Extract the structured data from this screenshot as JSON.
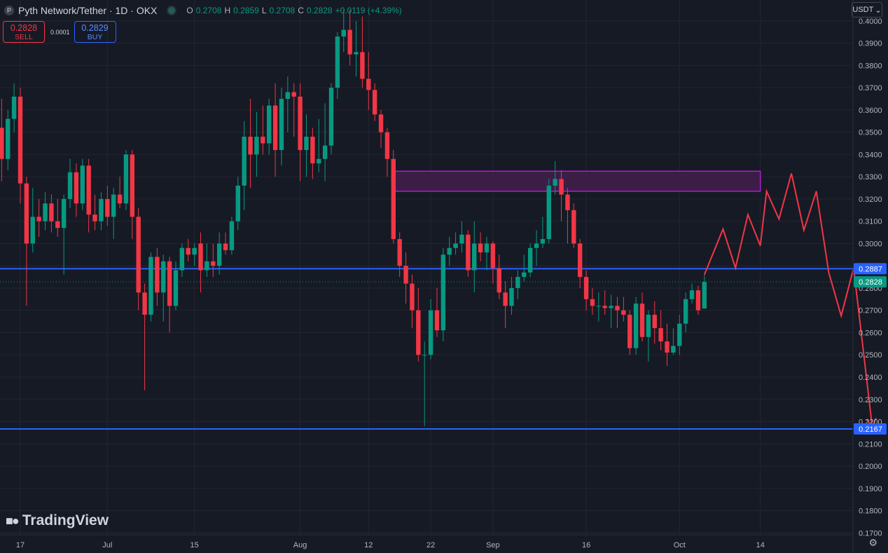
{
  "header": {
    "logo_icon": "pyth-logo-icon",
    "title": "Pyth Network/Tether · 1D · OKX",
    "ohlc": {
      "o_label": "O",
      "o": "0.2708",
      "h_label": "H",
      "h": "0.2859",
      "l_label": "L",
      "l": "0.2708",
      "c_label": "C",
      "c": "0.2828",
      "change": "+0.0119 (+4.39%)"
    }
  },
  "trade": {
    "sell_price": "0.2828",
    "sell_label": "SELL",
    "spread": "0.0001",
    "buy_price": "0.2829",
    "buy_label": "BUY"
  },
  "currency": {
    "label": "USDT",
    "icon": "chevron-down-icon"
  },
  "branding": {
    "name": "TradingView",
    "icon": "tradingview-logo-icon"
  },
  "settings_icon": "gear-icon",
  "colors": {
    "bg": "#161a25",
    "grid": "#232632",
    "up": "#089981",
    "down": "#f23645",
    "hline": "#2962ff",
    "zone_fill": "#4a1f52",
    "zone_stroke": "#b41ad0",
    "projection": "#f23645",
    "text": "#b2b5be"
  },
  "chart_data": {
    "type": "candlestick",
    "symbol": "Pyth Network/Tether",
    "interval": "1D",
    "exchange": "OKX",
    "ylim": [
      0.166,
      0.405
    ],
    "y_ticks": [
      "0.4000",
      "0.3900",
      "0.3800",
      "0.3700",
      "0.3600",
      "0.3500",
      "0.3400",
      "0.3300",
      "0.3200",
      "0.3100",
      "0.3000",
      "0.2900",
      "0.2800",
      "0.2700",
      "0.2600",
      "0.2500",
      "0.2400",
      "0.2300",
      "0.2200",
      "0.2100",
      "0.2000",
      "0.1900",
      "0.1800",
      "0.1700"
    ],
    "x_ticks": [
      {
        "label": "17",
        "date": "2024-06-17"
      },
      {
        "label": "Jul",
        "date": "2024-07-01"
      },
      {
        "label": "15",
        "date": "2024-07-15"
      },
      {
        "label": "Aug",
        "date": "2024-08-01"
      },
      {
        "label": "12",
        "date": "2024-08-12"
      },
      {
        "label": "22",
        "date": "2024-08-22"
      },
      {
        "label": "Sep",
        "date": "2024-09-01"
      },
      {
        "label": "16",
        "date": "2024-09-16"
      },
      {
        "label": "Oct",
        "date": "2024-10-01"
      },
      {
        "label": "14",
        "date": "2024-10-14"
      }
    ],
    "candles": [
      {
        "date": "2024-06-14",
        "o": 0.352,
        "h": 0.365,
        "l": 0.328,
        "c": 0.338
      },
      {
        "date": "2024-06-15",
        "o": 0.338,
        "h": 0.36,
        "l": 0.333,
        "c": 0.356
      },
      {
        "date": "2024-06-16",
        "o": 0.356,
        "h": 0.372,
        "l": 0.35,
        "c": 0.366
      },
      {
        "date": "2024-06-17",
        "o": 0.366,
        "h": 0.37,
        "l": 0.318,
        "c": 0.327
      },
      {
        "date": "2024-06-18",
        "o": 0.327,
        "h": 0.33,
        "l": 0.272,
        "c": 0.3
      },
      {
        "date": "2024-06-19",
        "o": 0.3,
        "h": 0.325,
        "l": 0.296,
        "c": 0.312
      },
      {
        "date": "2024-06-20",
        "o": 0.312,
        "h": 0.32,
        "l": 0.303,
        "c": 0.31
      },
      {
        "date": "2024-06-21",
        "o": 0.31,
        "h": 0.323,
        "l": 0.306,
        "c": 0.318
      },
      {
        "date": "2024-06-22",
        "o": 0.318,
        "h": 0.322,
        "l": 0.305,
        "c": 0.31
      },
      {
        "date": "2024-06-23",
        "o": 0.31,
        "h": 0.32,
        "l": 0.303,
        "c": 0.307
      },
      {
        "date": "2024-06-24",
        "o": 0.307,
        "h": 0.322,
        "l": 0.286,
        "c": 0.32
      },
      {
        "date": "2024-06-25",
        "o": 0.32,
        "h": 0.338,
        "l": 0.316,
        "c": 0.332
      },
      {
        "date": "2024-06-26",
        "o": 0.332,
        "h": 0.336,
        "l": 0.312,
        "c": 0.318
      },
      {
        "date": "2024-06-27",
        "o": 0.318,
        "h": 0.338,
        "l": 0.315,
        "c": 0.335
      },
      {
        "date": "2024-06-28",
        "o": 0.335,
        "h": 0.338,
        "l": 0.305,
        "c": 0.313
      },
      {
        "date": "2024-06-29",
        "o": 0.313,
        "h": 0.322,
        "l": 0.306,
        "c": 0.31
      },
      {
        "date": "2024-06-30",
        "o": 0.31,
        "h": 0.323,
        "l": 0.306,
        "c": 0.32
      },
      {
        "date": "2024-07-01",
        "o": 0.32,
        "h": 0.326,
        "l": 0.308,
        "c": 0.312
      },
      {
        "date": "2024-07-02",
        "o": 0.312,
        "h": 0.325,
        "l": 0.302,
        "c": 0.322
      },
      {
        "date": "2024-07-03",
        "o": 0.322,
        "h": 0.33,
        "l": 0.316,
        "c": 0.318
      },
      {
        "date": "2024-07-04",
        "o": 0.318,
        "h": 0.342,
        "l": 0.315,
        "c": 0.34
      },
      {
        "date": "2024-07-05",
        "o": 0.34,
        "h": 0.342,
        "l": 0.302,
        "c": 0.312
      },
      {
        "date": "2024-07-06",
        "o": 0.312,
        "h": 0.316,
        "l": 0.27,
        "c": 0.278
      },
      {
        "date": "2024-07-07",
        "o": 0.278,
        "h": 0.282,
        "l": 0.234,
        "c": 0.268
      },
      {
        "date": "2024-07-08",
        "o": 0.268,
        "h": 0.296,
        "l": 0.265,
        "c": 0.294
      },
      {
        "date": "2024-07-09",
        "o": 0.294,
        "h": 0.298,
        "l": 0.272,
        "c": 0.278
      },
      {
        "date": "2024-07-10",
        "o": 0.278,
        "h": 0.295,
        "l": 0.265,
        "c": 0.292
      },
      {
        "date": "2024-07-11",
        "o": 0.292,
        "h": 0.294,
        "l": 0.26,
        "c": 0.272
      },
      {
        "date": "2024-07-12",
        "o": 0.272,
        "h": 0.292,
        "l": 0.27,
        "c": 0.288
      },
      {
        "date": "2024-07-13",
        "o": 0.288,
        "h": 0.3,
        "l": 0.285,
        "c": 0.298
      },
      {
        "date": "2024-07-14",
        "o": 0.298,
        "h": 0.302,
        "l": 0.292,
        "c": 0.295
      },
      {
        "date": "2024-07-15",
        "o": 0.295,
        "h": 0.3,
        "l": 0.29,
        "c": 0.298
      },
      {
        "date": "2024-07-16",
        "o": 0.3,
        "h": 0.305,
        "l": 0.278,
        "c": 0.288
      },
      {
        "date": "2024-07-17",
        "o": 0.288,
        "h": 0.3,
        "l": 0.285,
        "c": 0.292
      },
      {
        "date": "2024-07-18",
        "o": 0.292,
        "h": 0.3,
        "l": 0.285,
        "c": 0.29
      },
      {
        "date": "2024-07-19",
        "o": 0.29,
        "h": 0.305,
        "l": 0.286,
        "c": 0.3
      },
      {
        "date": "2024-07-20",
        "o": 0.3,
        "h": 0.305,
        "l": 0.295,
        "c": 0.297
      },
      {
        "date": "2024-07-21",
        "o": 0.297,
        "h": 0.312,
        "l": 0.295,
        "c": 0.31
      },
      {
        "date": "2024-07-22",
        "o": 0.31,
        "h": 0.33,
        "l": 0.306,
        "c": 0.326
      },
      {
        "date": "2024-07-23",
        "o": 0.326,
        "h": 0.355,
        "l": 0.315,
        "c": 0.348
      },
      {
        "date": "2024-07-24",
        "o": 0.348,
        "h": 0.365,
        "l": 0.325,
        "c": 0.34
      },
      {
        "date": "2024-07-25",
        "o": 0.34,
        "h": 0.359,
        "l": 0.33,
        "c": 0.348
      },
      {
        "date": "2024-07-26",
        "o": 0.348,
        "h": 0.362,
        "l": 0.34,
        "c": 0.345
      },
      {
        "date": "2024-07-27",
        "o": 0.345,
        "h": 0.365,
        "l": 0.34,
        "c": 0.362
      },
      {
        "date": "2024-07-28",
        "o": 0.362,
        "h": 0.372,
        "l": 0.33,
        "c": 0.342
      },
      {
        "date": "2024-07-29",
        "o": 0.342,
        "h": 0.37,
        "l": 0.335,
        "c": 0.365
      },
      {
        "date": "2024-07-30",
        "o": 0.365,
        "h": 0.375,
        "l": 0.35,
        "c": 0.368
      },
      {
        "date": "2024-07-31",
        "o": 0.368,
        "h": 0.372,
        "l": 0.348,
        "c": 0.366
      },
      {
        "date": "2024-08-01",
        "o": 0.366,
        "h": 0.372,
        "l": 0.328,
        "c": 0.342
      },
      {
        "date": "2024-08-02",
        "o": 0.342,
        "h": 0.358,
        "l": 0.33,
        "c": 0.348
      },
      {
        "date": "2024-08-03",
        "o": 0.348,
        "h": 0.352,
        "l": 0.329,
        "c": 0.336
      },
      {
        "date": "2024-08-04",
        "o": 0.336,
        "h": 0.356,
        "l": 0.332,
        "c": 0.338
      },
      {
        "date": "2024-08-05",
        "o": 0.338,
        "h": 0.363,
        "l": 0.328,
        "c": 0.344
      },
      {
        "date": "2024-08-06",
        "o": 0.344,
        "h": 0.372,
        "l": 0.34,
        "c": 0.37
      },
      {
        "date": "2024-08-07",
        "o": 0.37,
        "h": 0.395,
        "l": 0.365,
        "c": 0.393
      },
      {
        "date": "2024-08-08",
        "o": 0.393,
        "h": 0.405,
        "l": 0.386,
        "c": 0.396
      },
      {
        "date": "2024-08-09",
        "o": 0.396,
        "h": 0.405,
        "l": 0.38,
        "c": 0.385
      },
      {
        "date": "2024-08-10",
        "o": 0.385,
        "h": 0.4,
        "l": 0.375,
        "c": 0.386
      },
      {
        "date": "2024-08-11",
        "o": 0.386,
        "h": 0.402,
        "l": 0.37,
        "c": 0.374
      },
      {
        "date": "2024-08-12",
        "o": 0.374,
        "h": 0.386,
        "l": 0.36,
        "c": 0.369
      },
      {
        "date": "2024-08-13",
        "o": 0.369,
        "h": 0.372,
        "l": 0.355,
        "c": 0.358
      },
      {
        "date": "2024-08-14",
        "o": 0.358,
        "h": 0.36,
        "l": 0.343,
        "c": 0.35
      },
      {
        "date": "2024-08-15",
        "o": 0.35,
        "h": 0.352,
        "l": 0.33,
        "c": 0.338
      },
      {
        "date": "2024-08-16",
        "o": 0.338,
        "h": 0.342,
        "l": 0.3,
        "c": 0.302
      },
      {
        "date": "2024-08-17",
        "o": 0.302,
        "h": 0.305,
        "l": 0.285,
        "c": 0.29
      },
      {
        "date": "2024-08-18",
        "o": 0.29,
        "h": 0.296,
        "l": 0.273,
        "c": 0.282
      },
      {
        "date": "2024-08-19",
        "o": 0.282,
        "h": 0.286,
        "l": 0.262,
        "c": 0.27
      },
      {
        "date": "2024-08-20",
        "o": 0.27,
        "h": 0.28,
        "l": 0.247,
        "c": 0.25
      },
      {
        "date": "2024-08-21",
        "o": 0.25,
        "h": 0.256,
        "l": 0.218,
        "c": 0.25
      },
      {
        "date": "2024-08-22",
        "o": 0.25,
        "h": 0.275,
        "l": 0.248,
        "c": 0.27
      },
      {
        "date": "2024-08-23",
        "o": 0.27,
        "h": 0.28,
        "l": 0.258,
        "c": 0.261
      },
      {
        "date": "2024-08-24",
        "o": 0.261,
        "h": 0.298,
        "l": 0.256,
        "c": 0.295
      },
      {
        "date": "2024-08-25",
        "o": 0.295,
        "h": 0.303,
        "l": 0.29,
        "c": 0.298
      },
      {
        "date": "2024-08-26",
        "o": 0.298,
        "h": 0.305,
        "l": 0.295,
        "c": 0.3
      },
      {
        "date": "2024-08-27",
        "o": 0.3,
        "h": 0.31,
        "l": 0.296,
        "c": 0.304
      },
      {
        "date": "2024-08-28",
        "o": 0.304,
        "h": 0.306,
        "l": 0.285,
        "c": 0.288
      },
      {
        "date": "2024-08-29",
        "o": 0.288,
        "h": 0.31,
        "l": 0.278,
        "c": 0.3
      },
      {
        "date": "2024-08-30",
        "o": 0.3,
        "h": 0.305,
        "l": 0.292,
        "c": 0.296
      },
      {
        "date": "2024-08-31",
        "o": 0.296,
        "h": 0.303,
        "l": 0.288,
        "c": 0.3
      },
      {
        "date": "2024-09-01",
        "o": 0.3,
        "h": 0.301,
        "l": 0.282,
        "c": 0.289
      },
      {
        "date": "2024-09-02",
        "o": 0.289,
        "h": 0.295,
        "l": 0.275,
        "c": 0.278
      },
      {
        "date": "2024-09-03",
        "o": 0.278,
        "h": 0.283,
        "l": 0.262,
        "c": 0.272
      },
      {
        "date": "2024-09-04",
        "o": 0.272,
        "h": 0.285,
        "l": 0.268,
        "c": 0.28
      },
      {
        "date": "2024-09-05",
        "o": 0.28,
        "h": 0.288,
        "l": 0.275,
        "c": 0.285
      },
      {
        "date": "2024-09-06",
        "o": 0.285,
        "h": 0.295,
        "l": 0.283,
        "c": 0.287
      },
      {
        "date": "2024-09-07",
        "o": 0.287,
        "h": 0.3,
        "l": 0.285,
        "c": 0.298
      },
      {
        "date": "2024-09-08",
        "o": 0.298,
        "h": 0.306,
        "l": 0.29,
        "c": 0.3
      },
      {
        "date": "2024-09-09",
        "o": 0.3,
        "h": 0.312,
        "l": 0.298,
        "c": 0.302
      },
      {
        "date": "2024-09-10",
        "o": 0.302,
        "h": 0.329,
        "l": 0.3,
        "c": 0.326
      },
      {
        "date": "2024-09-11",
        "o": 0.326,
        "h": 0.337,
        "l": 0.322,
        "c": 0.329
      },
      {
        "date": "2024-09-12",
        "o": 0.329,
        "h": 0.333,
        "l": 0.31,
        "c": 0.322
      },
      {
        "date": "2024-09-13",
        "o": 0.322,
        "h": 0.325,
        "l": 0.3,
        "c": 0.315
      },
      {
        "date": "2024-09-14",
        "o": 0.315,
        "h": 0.318,
        "l": 0.298,
        "c": 0.3
      },
      {
        "date": "2024-09-15",
        "o": 0.3,
        "h": 0.302,
        "l": 0.28,
        "c": 0.285
      },
      {
        "date": "2024-09-16",
        "o": 0.285,
        "h": 0.288,
        "l": 0.27,
        "c": 0.275
      },
      {
        "date": "2024-09-17",
        "o": 0.275,
        "h": 0.28,
        "l": 0.268,
        "c": 0.272
      },
      {
        "date": "2024-09-18",
        "o": 0.272,
        "h": 0.278,
        "l": 0.265,
        "c": 0.272
      },
      {
        "date": "2024-09-19",
        "o": 0.272,
        "h": 0.279,
        "l": 0.268,
        "c": 0.271
      },
      {
        "date": "2024-09-20",
        "o": 0.271,
        "h": 0.277,
        "l": 0.262,
        "c": 0.272
      },
      {
        "date": "2024-09-21",
        "o": 0.272,
        "h": 0.276,
        "l": 0.262,
        "c": 0.27
      },
      {
        "date": "2024-09-22",
        "o": 0.27,
        "h": 0.276,
        "l": 0.265,
        "c": 0.268
      },
      {
        "date": "2024-09-23",
        "o": 0.268,
        "h": 0.27,
        "l": 0.25,
        "c": 0.253
      },
      {
        "date": "2024-09-24",
        "o": 0.253,
        "h": 0.276,
        "l": 0.25,
        "c": 0.273
      },
      {
        "date": "2024-09-25",
        "o": 0.273,
        "h": 0.278,
        "l": 0.256,
        "c": 0.258
      },
      {
        "date": "2024-09-26",
        "o": 0.258,
        "h": 0.27,
        "l": 0.247,
        "c": 0.268
      },
      {
        "date": "2024-09-27",
        "o": 0.268,
        "h": 0.274,
        "l": 0.255,
        "c": 0.262
      },
      {
        "date": "2024-09-28",
        "o": 0.262,
        "h": 0.27,
        "l": 0.252,
        "c": 0.256
      },
      {
        "date": "2024-09-29",
        "o": 0.256,
        "h": 0.264,
        "l": 0.245,
        "c": 0.251
      },
      {
        "date": "2024-09-30",
        "o": 0.251,
        "h": 0.262,
        "l": 0.25,
        "c": 0.254
      },
      {
        "date": "2024-10-01",
        "o": 0.254,
        "h": 0.268,
        "l": 0.25,
        "c": 0.264
      },
      {
        "date": "2024-10-02",
        "o": 0.264,
        "h": 0.278,
        "l": 0.26,
        "c": 0.275
      },
      {
        "date": "2024-10-03",
        "o": 0.275,
        "h": 0.282,
        "l": 0.273,
        "c": 0.279
      },
      {
        "date": "2024-10-04",
        "o": 0.279,
        "h": 0.281,
        "l": 0.268,
        "c": 0.27
      },
      {
        "date": "2024-10-05",
        "o": 0.2708,
        "h": 0.2859,
        "l": 0.2708,
        "c": 0.2828
      }
    ],
    "horizontal_lines": [
      {
        "price": 0.2887,
        "label": "0.2887"
      },
      {
        "price": 0.2167,
        "label": "0.2167"
      }
    ],
    "last_price": {
      "price": 0.2828,
      "label": "0.2828"
    },
    "zone": {
      "x_start": "2024-08-16",
      "x_end": "2024-10-14",
      "y_low": 0.3235,
      "y_high": 0.3325
    },
    "projection_path": [
      {
        "date": "2024-10-05",
        "y": 0.286
      },
      {
        "date": "2024-10-08",
        "y": 0.3065
      },
      {
        "date": "2024-10-10",
        "y": 0.289
      },
      {
        "date": "2024-10-12",
        "y": 0.313
      },
      {
        "date": "2024-10-14",
        "y": 0.299
      },
      {
        "date": "2024-10-15",
        "y": 0.3235
      },
      {
        "date": "2024-10-17",
        "y": 0.311
      },
      {
        "date": "2024-10-19",
        "y": 0.3315
      },
      {
        "date": "2024-10-21",
        "y": 0.306
      },
      {
        "date": "2024-10-23",
        "y": 0.3235
      },
      {
        "date": "2024-10-25",
        "y": 0.287
      },
      {
        "date": "2024-10-27",
        "y": 0.2675
      },
      {
        "date": "2024-10-29",
        "y": 0.289
      },
      {
        "date": "2024-11-01",
        "y": 0.2175
      }
    ]
  }
}
